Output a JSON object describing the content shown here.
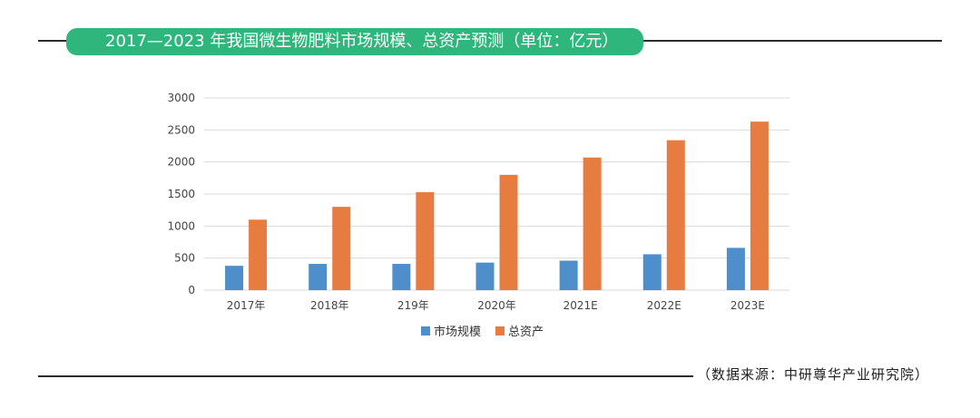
{
  "header": {
    "title": "2017—2023 年我国微生物肥料市场规模、总资产预测（单位：亿元）"
  },
  "footer": {
    "source": "（数据来源：中研尊华产业研究院）"
  },
  "colors": {
    "accent": "#2fb67c",
    "series_market": "#4e8fcb",
    "series_assets": "#e67c3f",
    "grid": "#d9d9d9"
  },
  "chart_data": {
    "type": "bar",
    "title": "2017—2023 年我国微生物肥料市场规模、总资产预测（单位：亿元）",
    "categories": [
      "2017年",
      "2018年",
      "219年",
      "2020年",
      "2021E",
      "2022E",
      "2023E"
    ],
    "series": [
      {
        "name": "市场规模",
        "values": [
          380,
          410,
          410,
          430,
          460,
          560,
          660
        ]
      },
      {
        "name": "总资产",
        "values": [
          1100,
          1300,
          1530,
          1800,
          2070,
          2340,
          2630
        ]
      }
    ],
    "yticks": [
      0,
      500,
      1000,
      1500,
      2000,
      2500,
      3000
    ],
    "ylim": [
      0,
      3000
    ],
    "xlabel": "",
    "ylabel": "",
    "grid": true,
    "legend": "bottom-center"
  }
}
